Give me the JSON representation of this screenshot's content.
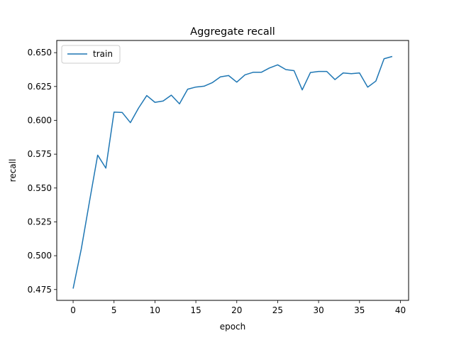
{
  "chart_data": {
    "type": "line",
    "title": "Aggregate recall",
    "xlabel": "epoch",
    "ylabel": "recall",
    "xlim": [
      -2,
      41
    ],
    "ylim": [
      0.467,
      0.659
    ],
    "xticks": [
      0,
      5,
      10,
      15,
      20,
      25,
      30,
      35,
      40
    ],
    "xtick_labels": [
      "0",
      "5",
      "10",
      "15",
      "20",
      "25",
      "30",
      "35",
      "40"
    ],
    "yticks": [
      0.475,
      0.5,
      0.525,
      0.55,
      0.575,
      0.6,
      0.625,
      0.65
    ],
    "ytick_labels": [
      "0.475",
      "0.500",
      "0.525",
      "0.550",
      "0.575",
      "0.600",
      "0.625",
      "0.650"
    ],
    "grid": false,
    "legend_position": "upper left",
    "series": [
      {
        "name": "train",
        "color": "#1f77b4",
        "x": [
          0,
          1,
          2,
          3,
          4,
          5,
          6,
          7,
          8,
          9,
          10,
          11,
          12,
          13,
          14,
          15,
          16,
          17,
          18,
          19,
          20,
          21,
          22,
          23,
          24,
          25,
          26,
          27,
          28,
          29,
          30,
          31,
          32,
          33,
          34,
          35,
          36,
          37,
          38,
          39
        ],
        "y": [
          0.4757,
          0.505,
          0.54,
          0.5743,
          0.5647,
          0.6061,
          0.6058,
          0.5983,
          0.6091,
          0.6183,
          0.6133,
          0.6143,
          0.6186,
          0.6122,
          0.623,
          0.6246,
          0.6252,
          0.6278,
          0.6321,
          0.6331,
          0.6282,
          0.6336,
          0.6355,
          0.6355,
          0.6387,
          0.641,
          0.6375,
          0.6367,
          0.6225,
          0.6353,
          0.6361,
          0.6361,
          0.6301,
          0.635,
          0.6345,
          0.635,
          0.6245,
          0.629,
          0.6455,
          0.6472
        ]
      }
    ]
  }
}
